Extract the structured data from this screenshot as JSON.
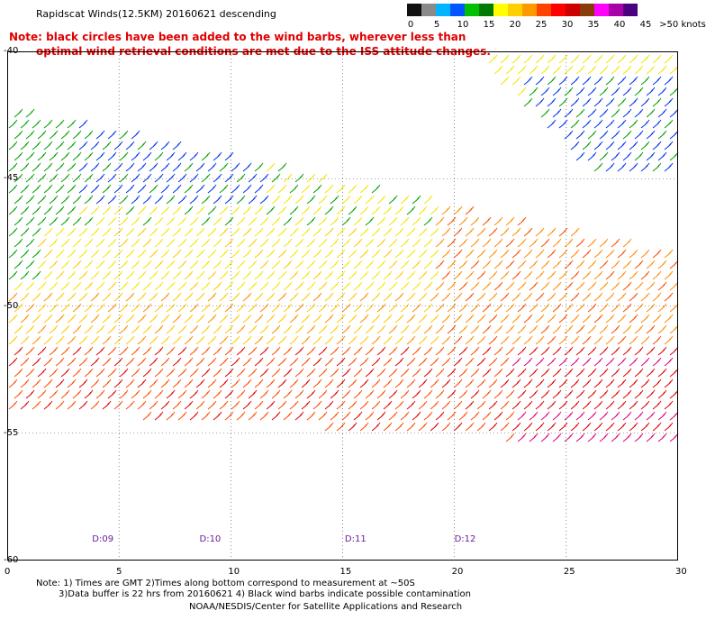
{
  "header": {
    "title": "Rapidscat Winds(12.5KM) 20160621 descending",
    "note_line1": "Note: black circles have been added to the wind barbs, wherever less than",
    "note_line2": "optimal wind retrieval conditions are met due to the ISS attitude changes."
  },
  "legend": {
    "colors": [
      "#111111",
      "#8a8a8a",
      "#00b4ff",
      "#0055ff",
      "#00c000",
      "#007a00",
      "#ffff00",
      "#ffd000",
      "#ff9900",
      "#ff4400",
      "#ff0000",
      "#cc0000",
      "#8b3a0a",
      "#ff00ff",
      "#aa00aa",
      "#4b0082"
    ],
    "tick_labels": [
      "0",
      "5",
      "10",
      "15",
      "20",
      "25",
      "30",
      "35",
      "40",
      "45",
      ">50 knots"
    ]
  },
  "map": {
    "x_axis_labels": [
      "0",
      "5",
      "10",
      "15",
      "20",
      "25",
      "30"
    ],
    "y_axis_labels": [
      "-40",
      "-45",
      "-50",
      "-55",
      "-60"
    ],
    "x_ticks": [
      0,
      5,
      10,
      15,
      20,
      25,
      30
    ],
    "y_ticks": [
      -40,
      -45,
      -50,
      -55,
      -60
    ],
    "x_range": [
      0,
      30
    ],
    "y_range": [
      -40,
      -60
    ],
    "grid": "dotted",
    "pass_time_labels": [
      {
        "label": "D:09",
        "lon": 4.2
      },
      {
        "label": "D:10",
        "lon": 9.0
      },
      {
        "label": "D:11",
        "lon": 15.5
      },
      {
        "label": "D:12",
        "lon": 20.4
      }
    ]
  },
  "footer": {
    "line1": "Note: 1) Times are GMT 2)Times along bottom correspond to measurement at ~50S",
    "line2": "3)Data buffer is 22 hrs from 20160621 4) Black wind barbs indicate possible contamination",
    "line3": "NOAA/NESDIS/Center for Satellite Applications and Research"
  }
}
